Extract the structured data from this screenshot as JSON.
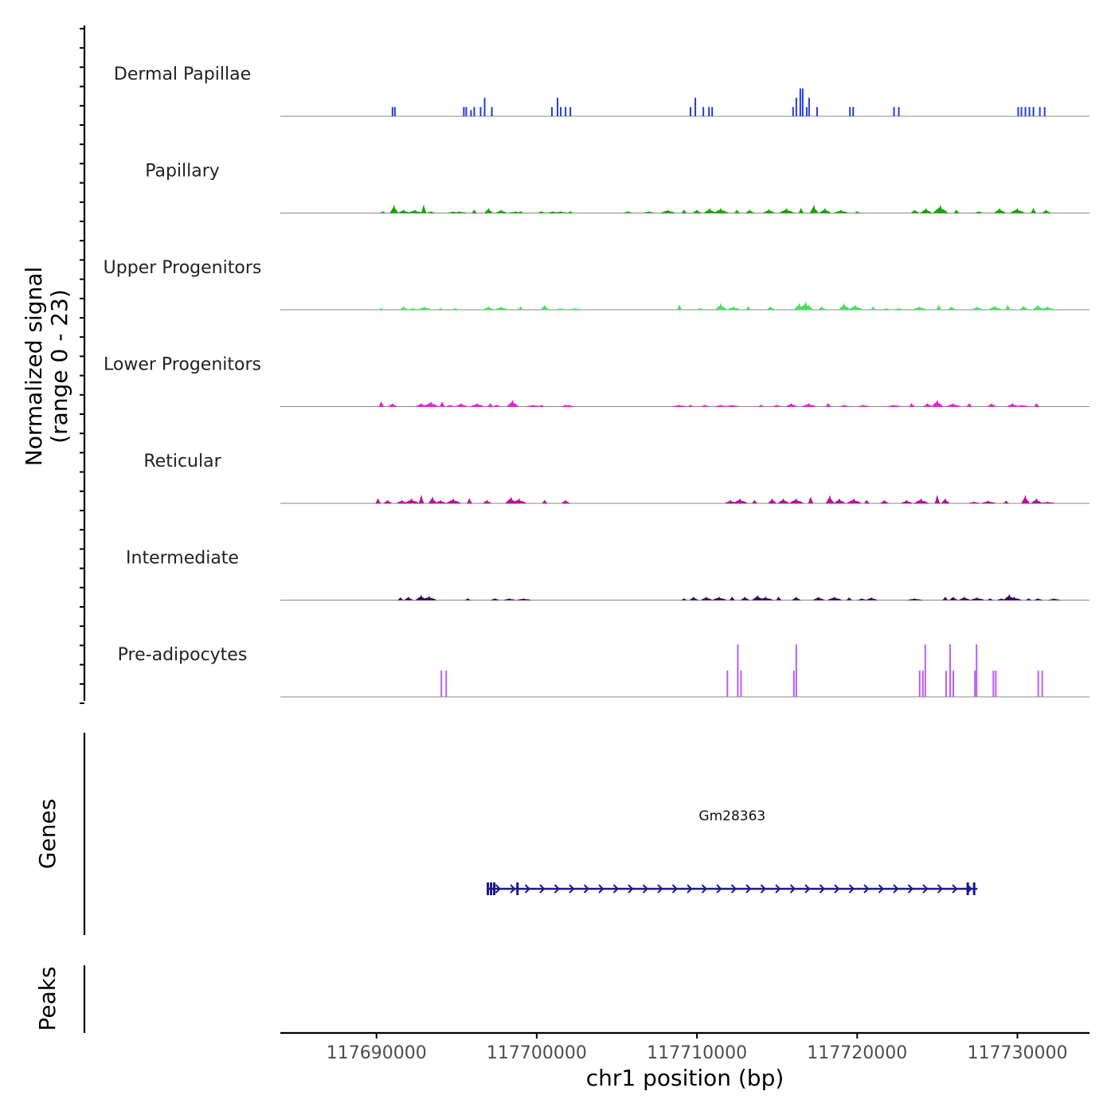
{
  "chart_data": {
    "type": "area",
    "title": "",
    "xlabel": "chr1 position (bp)",
    "xlim": [
      117684000,
      117734500
    ],
    "x_ticks": [
      117690000,
      117700000,
      117710000,
      117720000,
      117730000
    ],
    "x_tick_labels": [
      "117690000",
      "117700000",
      "117710000",
      "117720000",
      "117730000"
    ],
    "coverage": {
      "ylabel_line1": "Normalized signal",
      "ylabel_line2": "(range 0 - 23)",
      "ylim": [
        0,
        23
      ],
      "series": [
        {
          "name": "Dermal Papillae",
          "color": "#1f3fd6",
          "style": "spike",
          "peaks": [
            [
              117691000,
              3
            ],
            [
              117691150,
              3
            ],
            [
              117695450,
              3
            ],
            [
              117695600,
              3
            ],
            [
              117695900,
              2
            ],
            [
              117696100,
              3
            ],
            [
              117696500,
              3
            ],
            [
              117696750,
              6
            ],
            [
              117697200,
              3
            ],
            [
              117700950,
              3
            ],
            [
              117701300,
              6
            ],
            [
              117701500,
              3
            ],
            [
              117701800,
              3
            ],
            [
              117702100,
              3
            ],
            [
              117709600,
              3
            ],
            [
              117709900,
              6
            ],
            [
              117710400,
              3
            ],
            [
              117710750,
              3
            ],
            [
              117710950,
              3
            ],
            [
              117716000,
              3
            ],
            [
              117716200,
              6
            ],
            [
              117716450,
              9
            ],
            [
              117716600,
              9
            ],
            [
              117716850,
              3
            ],
            [
              117717000,
              6
            ],
            [
              117717500,
              3
            ],
            [
              117719550,
              3
            ],
            [
              117719750,
              3
            ],
            [
              117722300,
              3
            ],
            [
              117722600,
              3
            ],
            [
              117730050,
              3
            ],
            [
              117730250,
              3
            ],
            [
              117730500,
              3
            ],
            [
              117730750,
              3
            ],
            [
              117731000,
              3
            ],
            [
              117731400,
              3
            ],
            [
              117731700,
              3
            ]
          ]
        },
        {
          "name": "Papillary",
          "color": "#1aa30a",
          "style": "area",
          "peaks": [
            [
              117690400,
              0.5
            ],
            [
              117691100,
              2.5
            ],
            [
              117691700,
              1
            ],
            [
              117692400,
              1
            ],
            [
              117692950,
              2.5
            ],
            [
              117693400,
              0.5
            ],
            [
              117694800,
              0.5
            ],
            [
              117695200,
              0.5
            ],
            [
              117696100,
              1
            ],
            [
              117697000,
              1.5
            ],
            [
              117697800,
              1
            ],
            [
              117698700,
              0.5
            ],
            [
              117699000,
              0.5
            ],
            [
              117700300,
              0.5
            ],
            [
              117701000,
              0.5
            ],
            [
              117701500,
              0.5
            ],
            [
              117702100,
              0.5
            ],
            [
              117705700,
              0.5
            ],
            [
              117707000,
              0.5
            ],
            [
              117708200,
              1
            ],
            [
              117709200,
              1
            ],
            [
              117710000,
              1
            ],
            [
              117710800,
              1.5
            ],
            [
              117711500,
              1.5
            ],
            [
              117712500,
              1
            ],
            [
              117713300,
              1
            ],
            [
              117714500,
              1.2
            ],
            [
              117715600,
              1.5
            ],
            [
              117716500,
              1.5
            ],
            [
              117717300,
              2.5
            ],
            [
              117718000,
              1.5
            ],
            [
              117719000,
              1
            ],
            [
              117720000,
              0.5
            ],
            [
              117723600,
              1
            ],
            [
              117724300,
              1.5
            ],
            [
              117725200,
              2.5
            ],
            [
              117726200,
              1
            ],
            [
              117727600,
              0.5
            ],
            [
              117728900,
              1.5
            ],
            [
              117730000,
              1.5
            ],
            [
              117731000,
              1.5
            ],
            [
              117731800,
              1
            ]
          ]
        },
        {
          "name": "Upper Progenitors",
          "color": "#4fdc66",
          "style": "area",
          "peaks": [
            [
              117690300,
              0.5
            ],
            [
              117691700,
              1
            ],
            [
              117692300,
              0.5
            ],
            [
              117693000,
              1
            ],
            [
              117694000,
              0.5
            ],
            [
              117694900,
              0.5
            ],
            [
              117697000,
              1
            ],
            [
              117697800,
              1
            ],
            [
              117699000,
              1
            ],
            [
              117700500,
              1.5
            ],
            [
              117701500,
              0.5
            ],
            [
              117702400,
              0.5
            ],
            [
              117708900,
              1.5
            ],
            [
              117710200,
              0.5
            ],
            [
              117711500,
              2
            ],
            [
              117712300,
              1
            ],
            [
              117713200,
              1
            ],
            [
              117714600,
              1
            ],
            [
              117716400,
              2
            ],
            [
              117716800,
              2.5
            ],
            [
              117717000,
              1.5
            ],
            [
              117717800,
              1
            ],
            [
              117719200,
              2
            ],
            [
              117719900,
              1.5
            ],
            [
              117721000,
              1
            ],
            [
              117721800,
              0.5
            ],
            [
              117722600,
              0.5
            ],
            [
              117723900,
              1
            ],
            [
              117725100,
              1.5
            ],
            [
              117725900,
              1
            ],
            [
              117727500,
              1
            ],
            [
              117728600,
              1.2
            ],
            [
              117729400,
              1.5
            ],
            [
              117730400,
              1.2
            ],
            [
              117731300,
              1.5
            ],
            [
              117731900,
              1
            ]
          ]
        },
        {
          "name": "Lower Progenitors",
          "color": "#ee1ad9",
          "style": "area",
          "peaks": [
            [
              117690300,
              1.5
            ],
            [
              117691000,
              1
            ],
            [
              117692800,
              1
            ],
            [
              117693400,
              1.5
            ],
            [
              117694100,
              1.5
            ],
            [
              117694600,
              0.5
            ],
            [
              117695300,
              1
            ],
            [
              117696300,
              1
            ],
            [
              117697100,
              1
            ],
            [
              117697500,
              0.5
            ],
            [
              117698500,
              2
            ],
            [
              117699800,
              0.5
            ],
            [
              117700300,
              0.5
            ],
            [
              117701800,
              0.5
            ],
            [
              117702000,
              0.5
            ],
            [
              117708900,
              0.5
            ],
            [
              117709600,
              0.5
            ],
            [
              117710500,
              0.5
            ],
            [
              117711500,
              0.5
            ],
            [
              117712200,
              0.5
            ],
            [
              117714000,
              0.5
            ],
            [
              117715000,
              0.5
            ],
            [
              117715900,
              1
            ],
            [
              117717000,
              1
            ],
            [
              117718200,
              1
            ],
            [
              117719200,
              0.5
            ],
            [
              117720400,
              0.5
            ],
            [
              117722300,
              0.5
            ],
            [
              117723400,
              1
            ],
            [
              117724400,
              1
            ],
            [
              117725000,
              2
            ],
            [
              117726000,
              1
            ],
            [
              117727000,
              1
            ],
            [
              117728400,
              1
            ],
            [
              117729700,
              1
            ],
            [
              117730300,
              0.5
            ],
            [
              117731200,
              1
            ]
          ]
        },
        {
          "name": "Reticular",
          "color": "#b7119f",
          "style": "area",
          "peaks": [
            [
              117690100,
              1.5
            ],
            [
              117690700,
              1
            ],
            [
              117691600,
              1
            ],
            [
              117692200,
              1.5
            ],
            [
              117692800,
              2.5
            ],
            [
              117693500,
              2
            ],
            [
              117694000,
              1
            ],
            [
              117694800,
              1.5
            ],
            [
              117695800,
              1.5
            ],
            [
              117696900,
              1
            ],
            [
              117698400,
              2
            ],
            [
              117698900,
              1.5
            ],
            [
              117700500,
              1
            ],
            [
              117701800,
              1
            ],
            [
              117712100,
              1
            ],
            [
              117712700,
              1.5
            ],
            [
              117713600,
              1
            ],
            [
              117714700,
              1.5
            ],
            [
              117715400,
              1.5
            ],
            [
              117716200,
              1.5
            ],
            [
              117717100,
              2
            ],
            [
              117718300,
              2.5
            ],
            [
              117718900,
              1.5
            ],
            [
              117719800,
              1.5
            ],
            [
              117720600,
              1
            ],
            [
              117721700,
              1
            ],
            [
              117723100,
              1
            ],
            [
              117724000,
              1.5
            ],
            [
              117725000,
              2.5
            ],
            [
              117725500,
              1.5
            ],
            [
              117727300,
              0.5
            ],
            [
              117728200,
              0.8
            ],
            [
              117729300,
              0.8
            ],
            [
              117730500,
              2.5
            ],
            [
              117731200,
              1.5
            ],
            [
              117731900,
              0.5
            ]
          ]
        },
        {
          "name": "Intermediate",
          "color": "#3a0b55",
          "style": "area",
          "peaks": [
            [
              117691500,
              0.8
            ],
            [
              117692000,
              1
            ],
            [
              117692800,
              1.5
            ],
            [
              117693300,
              1.2
            ],
            [
              117695700,
              0.5
            ],
            [
              117697400,
              0.5
            ],
            [
              117698300,
              0.5
            ],
            [
              117699200,
              0.5
            ],
            [
              117709200,
              0.5
            ],
            [
              117709800,
              1
            ],
            [
              117710600,
              1
            ],
            [
              117711400,
              1
            ],
            [
              117712200,
              1
            ],
            [
              117713000,
              1
            ],
            [
              117713800,
              1.5
            ],
            [
              117714300,
              1
            ],
            [
              117715100,
              1
            ],
            [
              117716200,
              1
            ],
            [
              117717600,
              1
            ],
            [
              117718600,
              1
            ],
            [
              117719500,
              0.8
            ],
            [
              117720300,
              0.5
            ],
            [
              117720900,
              0.8
            ],
            [
              117723600,
              0.5
            ],
            [
              117725500,
              1
            ],
            [
              117726000,
              1
            ],
            [
              117726700,
              1
            ],
            [
              117727500,
              0.8
            ],
            [
              117728300,
              0.5
            ],
            [
              117729000,
              0.5
            ],
            [
              117729500,
              1.8
            ],
            [
              117729800,
              1
            ],
            [
              117730700,
              0.5
            ],
            [
              117731300,
              0.5
            ],
            [
              117732300,
              0.5
            ]
          ]
        },
        {
          "name": "Pre-adipocytes",
          "color": "#bc5df6",
          "style": "spike",
          "peaks": [
            [
              117694050,
              8.5
            ],
            [
              117694350,
              8.5
            ],
            [
              117711900,
              8.5
            ],
            [
              117712550,
              17
            ],
            [
              117712750,
              8.5
            ],
            [
              117716050,
              8.5
            ],
            [
              117716200,
              17
            ],
            [
              117723900,
              8.5
            ],
            [
              117724100,
              8.5
            ],
            [
              117724250,
              17
            ],
            [
              117725550,
              8.5
            ],
            [
              117725800,
              17
            ],
            [
              117726000,
              8.5
            ],
            [
              117727350,
              8.5
            ],
            [
              117727450,
              17
            ],
            [
              117728500,
              8.5
            ],
            [
              117728650,
              8.5
            ],
            [
              117731300,
              8.5
            ],
            [
              117731550,
              8.5
            ]
          ]
        }
      ]
    },
    "genes": {
      "ylabel": "Genes",
      "items": [
        {
          "name": "Gm28363",
          "start": 117696900,
          "end": 117727500,
          "strand": "+",
          "exons": [
            117696950,
            117697150,
            117697350,
            117698800,
            117726900,
            117727300
          ]
        }
      ],
      "color": "#1a1a8c"
    },
    "peaks": {
      "ylabel": "Peaks",
      "items": []
    }
  }
}
